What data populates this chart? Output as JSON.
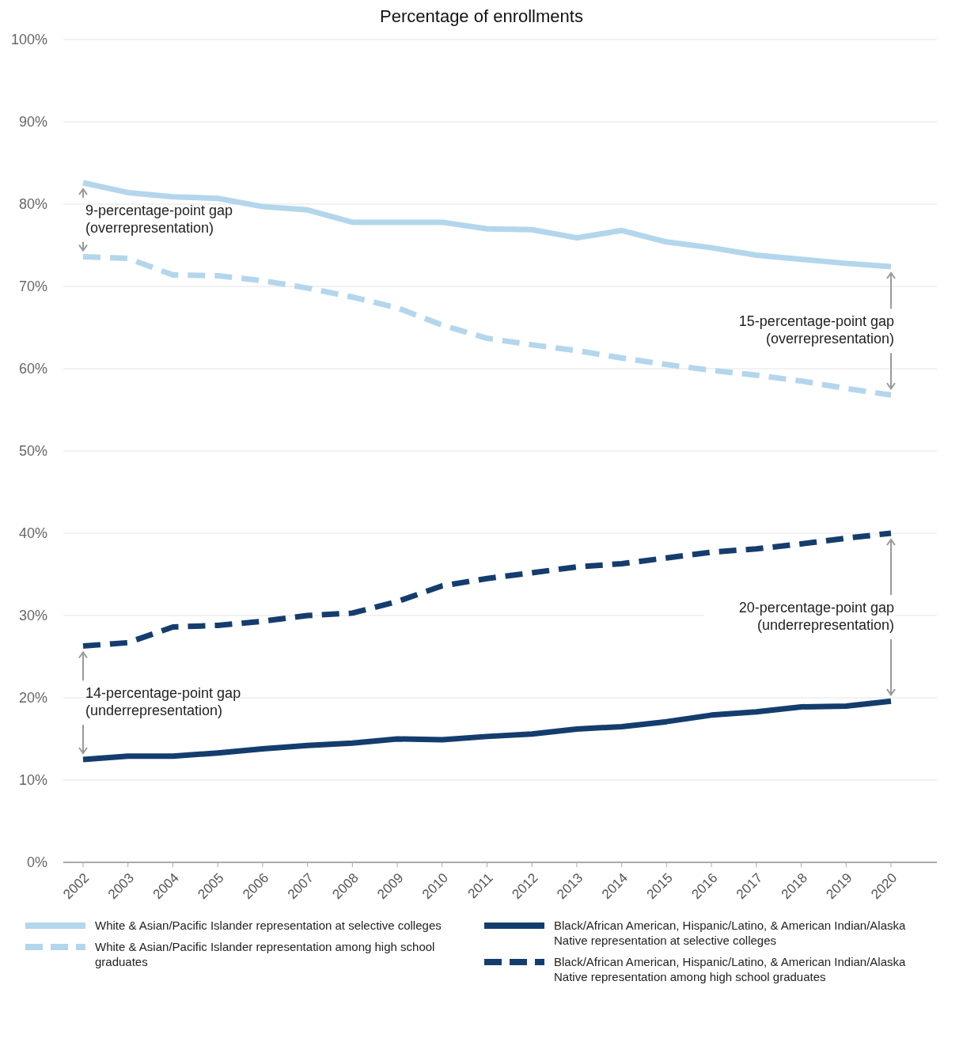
{
  "chart_data": {
    "type": "line",
    "title": "Percentage of enrollments",
    "categories": [
      "2002",
      "2003",
      "2004",
      "2005",
      "2006",
      "2007",
      "2008",
      "2009",
      "2010",
      "2011",
      "2012",
      "2013",
      "2014",
      "2015",
      "2016",
      "2017",
      "2018",
      "2019",
      "2020"
    ],
    "series": [
      {
        "name": "White & Asian/Pacific Islander representation at selective colleges",
        "color": "#b3d6ec",
        "line_style": "solid",
        "values": [
          82.6,
          81.4,
          80.9,
          80.7,
          79.7,
          79.3,
          77.8,
          77.8,
          77.8,
          77.0,
          76.9,
          75.9,
          76.8,
          75.4,
          74.7,
          73.8,
          73.3,
          72.8,
          72.4
        ]
      },
      {
        "name": "White & Asian/Pacific Islander representation among high school graduates",
        "color": "#b3d6ec",
        "line_style": "dashed",
        "values": [
          73.6,
          73.4,
          71.4,
          71.3,
          70.7,
          69.8,
          68.7,
          67.4,
          65.3,
          63.7,
          62.9,
          62.2,
          61.3,
          60.5,
          59.8,
          59.2,
          58.5,
          57.6,
          56.8
        ]
      },
      {
        "name": "Black/African American, Hispanic/Latino, & American Indian/Alaska Native representation at selective colleges",
        "color": "#143d6e",
        "line_style": "solid",
        "values": [
          12.5,
          12.9,
          12.9,
          13.3,
          13.8,
          14.2,
          14.5,
          15.0,
          14.9,
          15.3,
          15.6,
          16.2,
          16.5,
          17.1,
          17.9,
          18.3,
          18.9,
          19.0,
          19.6
        ]
      },
      {
        "name": "Black/African American, Hispanic/Latino, & American Indian/Alaska Native representation among high school graduates",
        "color": "#143d6e",
        "line_style": "dashed",
        "values": [
          26.3,
          26.7,
          28.6,
          28.8,
          29.3,
          30.0,
          30.3,
          31.7,
          33.6,
          34.5,
          35.2,
          35.9,
          36.3,
          37.0,
          37.7,
          38.1,
          38.7,
          39.4,
          40.0
        ]
      }
    ],
    "ylim": [
      0,
      100
    ],
    "yticks": [
      {
        "value": 0,
        "label": "0%"
      },
      {
        "value": 10,
        "label": "10%"
      },
      {
        "value": 20,
        "label": "20%"
      },
      {
        "value": 30,
        "label": "30%"
      },
      {
        "value": 40,
        "label": "40%"
      },
      {
        "value": 50,
        "label": "50%"
      },
      {
        "value": 60,
        "label": "60%"
      },
      {
        "value": 70,
        "label": "70%"
      },
      {
        "value": 80,
        "label": "80%"
      },
      {
        "value": 90,
        "label": "90%"
      },
      {
        "value": 100,
        "label": "100%"
      }
    ],
    "grid": "y",
    "legend": "bottom",
    "marker": "none",
    "annotations": [
      "9-percentage-point gap\n(overrepresentation)",
      "15-percentage-point gap\n(overrepresentation)",
      "20-percentage-point gap\n(underrepresentation)",
      "14-percentage-point gap\n(underrepresentation)"
    ]
  }
}
